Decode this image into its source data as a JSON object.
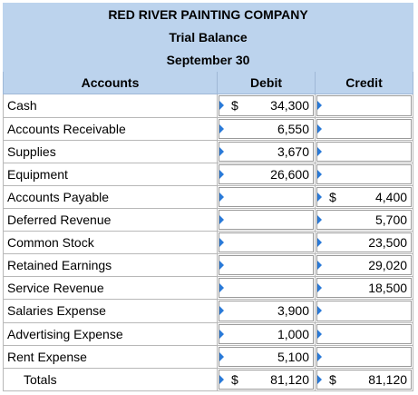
{
  "title": {
    "company": "RED RIVER PAINTING COMPANY",
    "report": "Trial Balance",
    "date": "September 30"
  },
  "columns": {
    "accounts": "Accounts",
    "debit": "Debit",
    "credit": "Credit"
  },
  "rows": [
    {
      "account": "Cash",
      "debit_currency": "$",
      "debit": "34,300",
      "credit_currency": "",
      "credit": ""
    },
    {
      "account": "Accounts Receivable",
      "debit_currency": "",
      "debit": "6,550",
      "credit_currency": "",
      "credit": ""
    },
    {
      "account": "Supplies",
      "debit_currency": "",
      "debit": "3,670",
      "credit_currency": "",
      "credit": ""
    },
    {
      "account": "Equipment",
      "debit_currency": "",
      "debit": "26,600",
      "credit_currency": "",
      "credit": ""
    },
    {
      "account": "Accounts Payable",
      "debit_currency": "",
      "debit": "",
      "credit_currency": "$",
      "credit": "4,400"
    },
    {
      "account": "Deferred Revenue",
      "debit_currency": "",
      "debit": "",
      "credit_currency": "",
      "credit": "5,700"
    },
    {
      "account": "Common Stock",
      "debit_currency": "",
      "debit": "",
      "credit_currency": "",
      "credit": "23,500"
    },
    {
      "account": "Retained Earnings",
      "debit_currency": "",
      "debit": "",
      "credit_currency": "",
      "credit": "29,020"
    },
    {
      "account": "Service Revenue",
      "debit_currency": "",
      "debit": "",
      "credit_currency": "",
      "credit": "18,500"
    },
    {
      "account": "Salaries Expense",
      "debit_currency": "",
      "debit": "3,900",
      "credit_currency": "",
      "credit": ""
    },
    {
      "account": "Advertising Expense",
      "debit_currency": "",
      "debit": "1,000",
      "credit_currency": "",
      "credit": ""
    },
    {
      "account": "Rent Expense",
      "debit_currency": "",
      "debit": "5,100",
      "credit_currency": "",
      "credit": ""
    }
  ],
  "totals": {
    "label": "Totals",
    "debit_currency": "$",
    "debit": "81,120",
    "credit_currency": "$",
    "credit": "81,120"
  },
  "colors": {
    "header_bg": "#bcd3ed",
    "input_marker": "#2a7ad8"
  }
}
